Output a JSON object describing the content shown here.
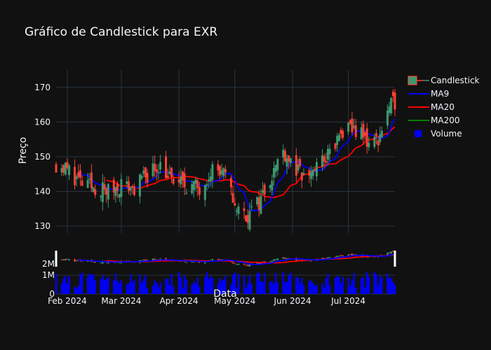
{
  "chart_data": {
    "type": "candlestick",
    "title": "Gráfico de Candlestick para EXR",
    "ylabel": "Preço",
    "xlabel": "Data",
    "price_ylim": [
      128,
      175
    ],
    "price_yticks": [
      130,
      140,
      150,
      160,
      170
    ],
    "volume_yticks": [
      {
        "value": 0,
        "label": "0"
      },
      {
        "value": 1000000,
        "label": "1M"
      },
      {
        "value": 2000000,
        "label": "2M"
      }
    ],
    "xticks": [
      {
        "date": "2024-02-01",
        "label": "Feb 2024"
      },
      {
        "date": "2024-03-01",
        "label": "Mar 2024"
      },
      {
        "date": "2024-04-01",
        "label": "Apr 2024"
      },
      {
        "date": "2024-05-01",
        "label": "May 2024"
      },
      {
        "date": "2024-06-01",
        "label": "Jun 2024"
      },
      {
        "date": "2024-07-01",
        "label": "Jul 2024"
      }
    ],
    "legend_position": "right",
    "legend": [
      {
        "name": "Candlestick",
        "kind": "candle"
      },
      {
        "name": "MA9",
        "kind": "line",
        "color": "#0000ff"
      },
      {
        "name": "MA20",
        "kind": "line",
        "color": "#ff0000"
      },
      {
        "name": "MA200",
        "kind": "line",
        "color": "#008000"
      },
      {
        "name": "Volume",
        "kind": "bar",
        "color": "#0000ff"
      }
    ],
    "colors": {
      "increasing": "#3d9970",
      "decreasing": "#ff4136",
      "ma9": "#0000ff",
      "ma20": "#ff0000",
      "ma200": "#008000",
      "volume": "#0000ff",
      "grid": "#283442",
      "text": "#f2f5fa",
      "background": "#111111"
    },
    "date_range": [
      "2024-01-26",
      "2024-07-26"
    ],
    "close_path": [
      [
        "2024-01-26",
        148
      ],
      [
        "2024-02-02",
        146
      ],
      [
        "2024-02-09",
        142
      ],
      [
        "2024-02-16",
        141
      ],
      [
        "2024-02-23",
        140
      ],
      [
        "2024-03-01",
        142
      ],
      [
        "2024-03-08",
        141
      ],
      [
        "2024-03-15",
        145
      ],
      [
        "2024-03-22",
        148
      ],
      [
        "2024-03-28",
        143
      ],
      [
        "2024-04-05",
        142
      ],
      [
        "2024-04-12",
        141
      ],
      [
        "2024-04-19",
        147
      ],
      [
        "2024-04-26",
        144
      ],
      [
        "2024-05-02",
        135
      ],
      [
        "2024-05-08",
        133
      ],
      [
        "2024-05-14",
        137
      ],
      [
        "2024-05-21",
        145
      ],
      [
        "2024-05-27",
        152
      ],
      [
        "2024-06-03",
        146
      ],
      [
        "2024-06-07",
        144
      ],
      [
        "2024-06-14",
        147
      ],
      [
        "2024-06-21",
        151
      ],
      [
        "2024-06-28",
        157
      ],
      [
        "2024-07-05",
        158
      ],
      [
        "2024-07-12",
        154
      ],
      [
        "2024-07-17",
        155
      ],
      [
        "2024-07-22",
        163
      ],
      [
        "2024-07-26",
        166
      ]
    ],
    "volume_typical_range": [
      300000,
      1200000
    ]
  }
}
